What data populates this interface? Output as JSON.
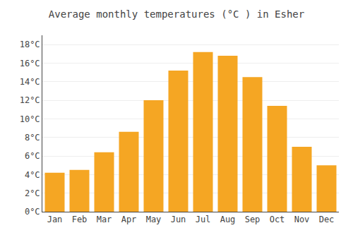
{
  "chart_data": {
    "type": "bar",
    "title": "Average monthly temperatures (°C ) in Esher",
    "categories": [
      "Jan",
      "Feb",
      "Mar",
      "Apr",
      "May",
      "Jun",
      "Jul",
      "Aug",
      "Sep",
      "Oct",
      "Nov",
      "Dec"
    ],
    "values": [
      4.2,
      4.5,
      6.4,
      8.6,
      12.0,
      15.2,
      17.2,
      16.8,
      14.5,
      11.4,
      7.0,
      5.0
    ],
    "color": "#F5A623",
    "ylim": [
      0,
      19
    ],
    "yticks": [
      {
        "value": 0,
        "label": "0°C"
      },
      {
        "value": 2,
        "label": "2°C"
      },
      {
        "value": 4,
        "label": "4°C"
      },
      {
        "value": 6,
        "label": "6°C"
      },
      {
        "value": 8,
        "label": "8°C"
      },
      {
        "value": 10,
        "label": "10°C"
      },
      {
        "value": 12,
        "label": "12°C"
      },
      {
        "value": 14,
        "label": "14°C"
      },
      {
        "value": 16,
        "label": "16°C"
      },
      {
        "value": 18,
        "label": "18°C"
      }
    ],
    "grid": true
  }
}
